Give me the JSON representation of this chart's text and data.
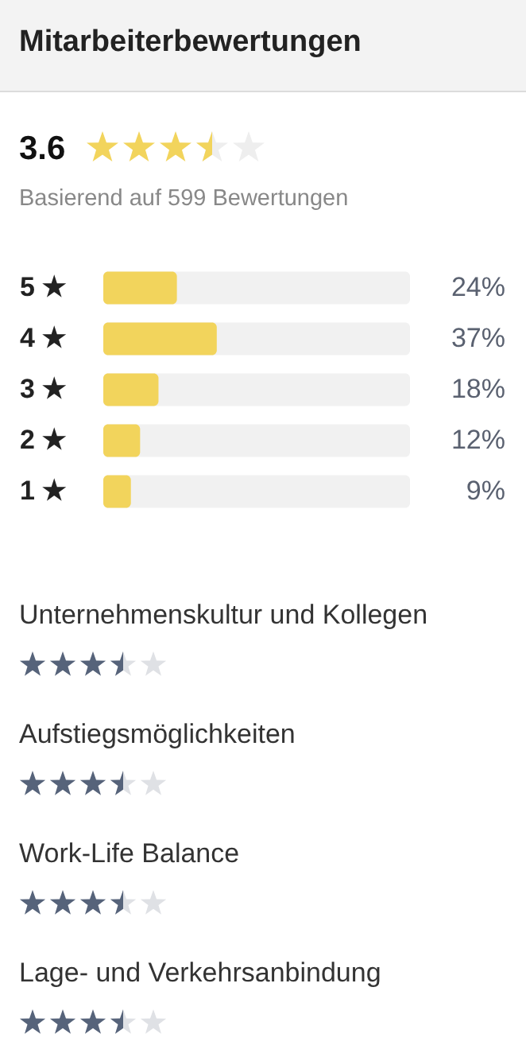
{
  "chart_data": {
    "type": "bar",
    "orientation": "horizontal",
    "title": "Mitarbeiterbewertungen",
    "annotations": [
      "3.6",
      "Basierend auf 599 Bewertungen",
      "Unternehmenskultur und Kollegen",
      "Aufstiegsmöglichkeiten",
      "Work-Life Balance",
      "Lage- und Verkehrsanbindung"
    ],
    "categories": [
      "5 ★",
      "4 ★",
      "3 ★",
      "2 ★",
      "1 ★"
    ],
    "values": [
      24,
      37,
      18,
      12,
      9
    ],
    "value_labels": [
      "24%",
      "37%",
      "18%",
      "12%",
      "9%"
    ],
    "color": "#f2d45c",
    "xlim": [
      0,
      100
    ]
  }
}
